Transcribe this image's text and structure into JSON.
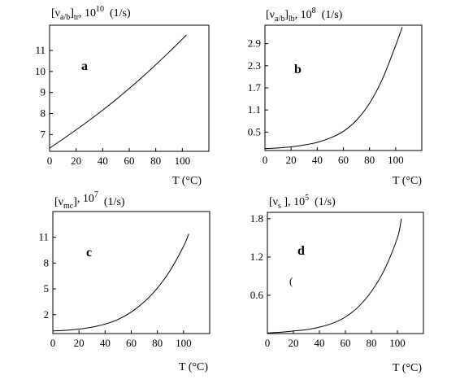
{
  "chart_data": [
    {
      "type": "line",
      "panel_label": "a",
      "title": {
        "base": "[ν",
        "sub1": "a/b",
        "mid": "]",
        "sub2": "tr",
        "sep": ", 10",
        "sup": "10",
        "unit": "  (1/s)"
      },
      "xlabel": "T (°C)",
      "xlim": [
        0,
        120
      ],
      "ylim": [
        6.2,
        12.2
      ],
      "xticks": [
        "0",
        "20",
        "40",
        "60",
        "80",
        "100"
      ],
      "yticks": [
        "7",
        "8",
        "9",
        "10",
        "11"
      ],
      "series": [
        {
          "x": [
            0,
            10,
            20,
            30,
            40,
            50,
            60,
            70,
            80,
            90,
            100,
            103
          ],
          "y": [
            6.35,
            6.78,
            7.22,
            7.68,
            8.16,
            8.66,
            9.19,
            9.74,
            10.32,
            10.92,
            11.54,
            11.73
          ]
        }
      ]
    },
    {
      "type": "line",
      "panel_label": "b",
      "title": {
        "base": "[ν",
        "sub1": "a/b",
        "mid": "]",
        "sub2": "lb",
        "sep": ", 10",
        "sup": "8",
        "unit": "  (1/s)"
      },
      "xlabel": "T (°C)",
      "xlim": [
        0,
        120
      ],
      "ylim": [
        0,
        3.4
      ],
      "xticks": [
        "0",
        "20",
        "40",
        "60",
        "80",
        "100"
      ],
      "yticks": [
        "0.5",
        "1.1",
        "1.7",
        "2.3",
        "2.9"
      ],
      "series": [
        {
          "x": [
            0,
            10,
            20,
            30,
            40,
            50,
            60,
            70,
            80,
            90,
            100,
            105
          ],
          "y": [
            0.05,
            0.07,
            0.1,
            0.15,
            0.22,
            0.34,
            0.52,
            0.82,
            1.28,
            1.95,
            2.85,
            3.35
          ]
        }
      ]
    },
    {
      "type": "line",
      "panel_label": "c",
      "title": {
        "base": "[ν",
        "sub1": "mc",
        "mid": "]",
        "sub2": "",
        "sep": ", 10",
        "sup": "7",
        "unit": "  (1/s)"
      },
      "xlabel": "T (°C)",
      "xlim": [
        0,
        120
      ],
      "ylim": [
        -0.2,
        14
      ],
      "xticks": [
        "0",
        "20",
        "40",
        "60",
        "80",
        "100"
      ],
      "yticks": [
        "2",
        "5",
        "8",
        "11"
      ],
      "series": [
        {
          "x": [
            0,
            10,
            20,
            30,
            40,
            50,
            60,
            70,
            80,
            90,
            100,
            104
          ],
          "y": [
            0.1,
            0.18,
            0.32,
            0.55,
            0.9,
            1.45,
            2.3,
            3.5,
            5.1,
            7.2,
            9.95,
            11.4
          ]
        }
      ]
    },
    {
      "type": "line",
      "panel_label": "d",
      "title": {
        "base": "[ν",
        "sub1": "s",
        "mid": " ]",
        "sub2": "",
        "sep": ", 10",
        "sup": "5",
        "unit": "  (1/s)"
      },
      "xlabel": "T (°C)",
      "xlim": [
        0,
        120
      ],
      "ylim": [
        0,
        1.9
      ],
      "xticks": [
        "0",
        "20",
        "40",
        "60",
        "80",
        "100"
      ],
      "yticks": [
        "0.6",
        "1.2",
        "1.8"
      ],
      "annotation": "(",
      "series": [
        {
          "x": [
            0,
            10,
            20,
            30,
            40,
            50,
            60,
            70,
            80,
            90,
            100,
            103
          ],
          "y": [
            0.01,
            0.02,
            0.04,
            0.06,
            0.1,
            0.16,
            0.26,
            0.42,
            0.66,
            1.0,
            1.5,
            1.8
          ]
        }
      ]
    }
  ]
}
